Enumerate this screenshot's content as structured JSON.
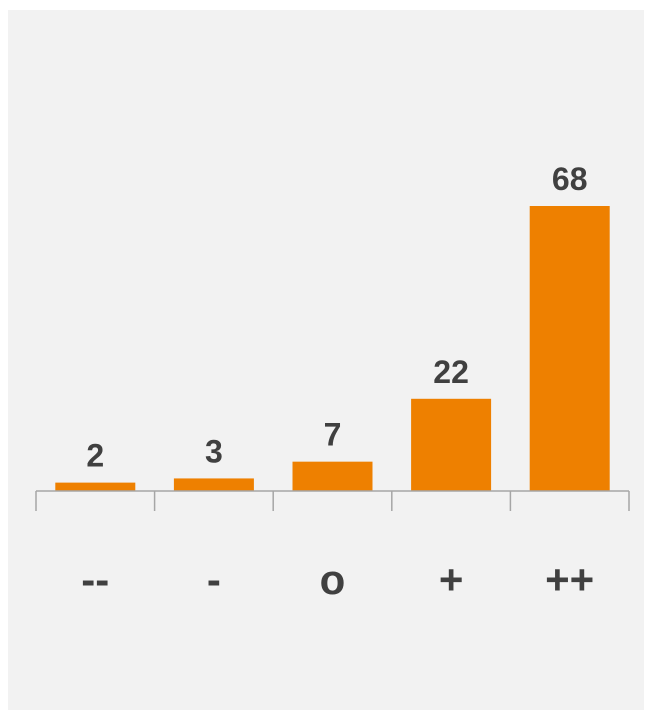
{
  "chart_data": {
    "type": "bar",
    "categories": [
      "--",
      "-",
      "o",
      "+",
      "++"
    ],
    "values": [
      2,
      3,
      7,
      22,
      68
    ],
    "data_labels": [
      "2",
      "3",
      "7",
      "22",
      "68"
    ],
    "title": "",
    "xlabel": "",
    "ylabel": "",
    "ylim": [
      0,
      68
    ],
    "grid": false,
    "legend": "none",
    "bar_color": "#ee8000",
    "axis_color": "#a6a6a6",
    "text_color": "#404040",
    "background": "#f2f2f2"
  }
}
